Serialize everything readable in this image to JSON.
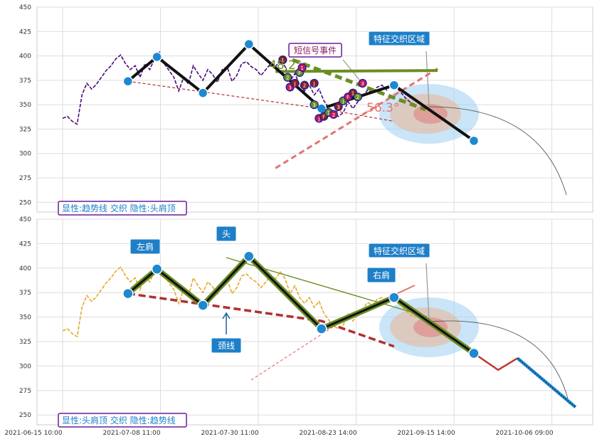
{
  "chart_data": [
    {
      "type": "line",
      "panel": "top",
      "ylim": [
        240,
        450
      ],
      "yticks": [
        250,
        275,
        300,
        325,
        350,
        375,
        400,
        425,
        450
      ],
      "grid": true,
      "legend_box": "显性:趋势线 交织 隐性:头肩顶",
      "event_label": "短信号事件",
      "zone_label": "特征交织区域",
      "angle_labels": [
        "48.2°",
        "56.3°"
      ],
      "signal_markers": [
        "1",
        "2",
        "3",
        "J",
        "F"
      ],
      "series": [
        {
          "values": [
            [
              0,
              336
            ],
            [
              2,
              338
            ],
            [
              4,
              333
            ],
            [
              6,
              330
            ],
            [
              8,
              360
            ],
            [
              10,
              372
            ],
            [
              12,
              366
            ],
            [
              14,
              371
            ],
            [
              16,
              378
            ],
            [
              18,
              385
            ],
            [
              20,
              390
            ],
            [
              22,
              397
            ],
            [
              24,
              401
            ],
            [
              26,
              392
            ],
            [
              28,
              386
            ],
            [
              30,
              390
            ],
            [
              32,
              378
            ],
            [
              34,
              392
            ],
            [
              36,
              386
            ],
            [
              38,
              397
            ],
            [
              40,
              404
            ],
            [
              42,
              392
            ],
            [
              44,
              385
            ],
            [
              46,
              378
            ],
            [
              48,
              364
            ],
            [
              50,
              378
            ],
            [
              52,
              371
            ],
            [
              54,
              390
            ],
            [
              56,
              382
            ],
            [
              58,
              375
            ],
            [
              60,
              386
            ],
            [
              62,
              381
            ],
            [
              64,
              373
            ],
            [
              66,
              386
            ],
            [
              68,
              389
            ],
            [
              70,
              374
            ],
            [
              72,
              380
            ],
            [
              74,
              392
            ],
            [
              76,
              394
            ],
            [
              78,
              389
            ],
            [
              80,
              386
            ],
            [
              82,
              380
            ],
            [
              84,
              386
            ],
            [
              86,
              392
            ],
            [
              88,
              389
            ],
            [
              90,
              396
            ],
            [
              92,
              389
            ],
            [
              94,
              374
            ],
            [
              96,
              382
            ],
            [
              98,
              370
            ],
            [
              100,
              364
            ],
            [
              102,
              370
            ],
            [
              104,
              360
            ],
            [
              106,
              366
            ],
            [
              108,
              354
            ],
            [
              110,
              347
            ],
            [
              112,
              341
            ],
            [
              114,
              338
            ],
            [
              116,
              342
            ],
            [
              118,
              353
            ],
            [
              120,
              346
            ],
            [
              122,
              353
            ],
            [
              124,
              358
            ],
            [
              126,
              365
            ],
            [
              128,
              362
            ],
            [
              130,
              368
            ],
            [
              132,
              370
            ],
            [
              134,
              365
            ],
            [
              136,
              372
            ],
            [
              138,
              368
            ],
            [
              140,
              362
            ],
            [
              142,
              356
            ],
            [
              144,
              352
            ],
            [
              146,
              350
            ]
          ]
        },
        {
          "values": [
            [
              27,
              374
            ],
            [
              39,
              399
            ],
            [
              58,
              362
            ],
            [
              77,
              412
            ],
            [
              107,
              346
            ],
            [
              137,
              370
            ],
            [
              170,
              313
            ]
          ]
        },
        {
          "values": [
            [
              27,
              374
            ],
            [
              107,
              346
            ],
            [
              137,
              333
            ]
          ]
        },
        {
          "values": [
            [
              88,
              384
            ],
            [
              155,
              385
            ]
          ]
        },
        {
          "values": [
            [
              88,
              285
            ],
            [
              155,
              387
            ]
          ]
        },
        {
          "values": [
            [
              95,
              396
            ],
            [
              150,
              345
            ]
          ]
        }
      ]
    },
    {
      "type": "line",
      "panel": "bottom",
      "ylim": [
        240,
        450
      ],
      "yticks": [
        250,
        275,
        300,
        325,
        350,
        375,
        400,
        425,
        450
      ],
      "grid": true,
      "legend_box": "显性:头肩顶 交织 隐性:趋势线",
      "zone_label": "特征交织区域",
      "shoulder_labels": {
        "left": "左肩",
        "head": "头",
        "right": "右肩",
        "neck": "颈线"
      },
      "x_tick_labels": [
        "2021-06-15 10:00",
        "2021-07-08 11:00",
        "2021-07-30 11:00",
        "2021-08-23 14:00",
        "2021-09-15 14:00",
        "2021-10-06 09:00"
      ],
      "series": [
        {
          "values": [
            [
              0,
              336
            ],
            [
              2,
              338
            ],
            [
              4,
              333
            ],
            [
              6,
              330
            ],
            [
              8,
              360
            ],
            [
              10,
              372
            ],
            [
              12,
              366
            ],
            [
              14,
              371
            ],
            [
              16,
              378
            ],
            [
              18,
              385
            ],
            [
              20,
              390
            ],
            [
              22,
              397
            ],
            [
              24,
              401
            ],
            [
              26,
              392
            ],
            [
              28,
              386
            ],
            [
              30,
              390
            ],
            [
              32,
              378
            ],
            [
              34,
              392
            ],
            [
              36,
              386
            ],
            [
              38,
              397
            ],
            [
              40,
              404
            ],
            [
              42,
              392
            ],
            [
              44,
              385
            ],
            [
              46,
              378
            ],
            [
              48,
              364
            ],
            [
              50,
              378
            ],
            [
              52,
              371
            ],
            [
              54,
              390
            ],
            [
              56,
              382
            ],
            [
              58,
              375
            ],
            [
              60,
              386
            ],
            [
              62,
              381
            ],
            [
              64,
              373
            ],
            [
              66,
              386
            ],
            [
              68,
              389
            ],
            [
              70,
              374
            ],
            [
              72,
              380
            ],
            [
              74,
              392
            ],
            [
              76,
              394
            ],
            [
              78,
              389
            ],
            [
              80,
              386
            ],
            [
              82,
              380
            ],
            [
              84,
              386
            ],
            [
              86,
              392
            ],
            [
              88,
              389
            ],
            [
              90,
              396
            ],
            [
              92,
              389
            ],
            [
              94,
              374
            ],
            [
              96,
              382
            ],
            [
              98,
              370
            ],
            [
              100,
              364
            ],
            [
              102,
              370
            ],
            [
              104,
              360
            ],
            [
              106,
              366
            ],
            [
              108,
              354
            ],
            [
              110,
              347
            ],
            [
              112,
              341
            ],
            [
              114,
              338
            ],
            [
              116,
              342
            ],
            [
              118,
              353
            ],
            [
              120,
              346
            ],
            [
              122,
              353
            ],
            [
              124,
              358
            ],
            [
              126,
              365
            ],
            [
              128,
              362
            ],
            [
              130,
              368
            ],
            [
              132,
              370
            ],
            [
              134,
              365
            ],
            [
              136,
              372
            ],
            [
              138,
              368
            ],
            [
              140,
              362
            ],
            [
              142,
              356
            ],
            [
              144,
              352
            ],
            [
              146,
              350
            ]
          ]
        },
        {
          "values": [
            [
              27,
              374
            ],
            [
              39,
              399
            ],
            [
              58,
              362
            ],
            [
              77,
              412
            ],
            [
              107,
              338
            ],
            [
              137,
              370
            ],
            [
              170,
              313
            ]
          ]
        },
        {
          "values": [
            [
              27,
              374
            ],
            [
              107,
              346
            ],
            [
              137,
              320
            ]
          ]
        },
        {
          "values": [
            [
              170,
              313
            ],
            [
              180,
              296
            ],
            [
              188,
              308
            ],
            [
              212,
              258
            ]
          ]
        }
      ]
    }
  ]
}
